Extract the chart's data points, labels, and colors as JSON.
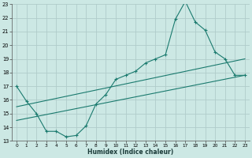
{
  "xlabel": "Humidex (Indice chaleur)",
  "bg_color": "#cce8e4",
  "grid_color": "#b0ccca",
  "line_color": "#1a7a6e",
  "xlim": [
    -0.5,
    23.5
  ],
  "ylim": [
    13,
    23
  ],
  "yticks": [
    13,
    14,
    15,
    16,
    17,
    18,
    19,
    20,
    21,
    22,
    23
  ],
  "xticks": [
    0,
    1,
    2,
    3,
    4,
    5,
    6,
    7,
    8,
    9,
    10,
    11,
    12,
    13,
    14,
    15,
    16,
    17,
    18,
    19,
    20,
    21,
    22,
    23
  ],
  "line1_x": [
    0,
    1,
    2,
    3,
    4,
    5,
    6,
    7,
    8,
    9,
    10,
    11,
    12,
    13,
    14,
    15,
    16,
    17,
    18,
    19,
    20,
    21,
    22,
    23
  ],
  "line1_y": [
    17.0,
    15.9,
    15.0,
    13.7,
    13.7,
    13.3,
    13.4,
    14.1,
    15.7,
    16.4,
    17.5,
    17.8,
    18.1,
    18.7,
    19.0,
    19.3,
    21.9,
    23.2,
    21.7,
    21.1,
    19.5,
    19.0,
    17.8,
    17.8
  ],
  "line2_x": [
    0,
    23
  ],
  "line2_y": [
    15.5,
    19.0
  ],
  "line3_x": [
    0,
    23
  ],
  "line3_y": [
    14.5,
    17.8
  ]
}
